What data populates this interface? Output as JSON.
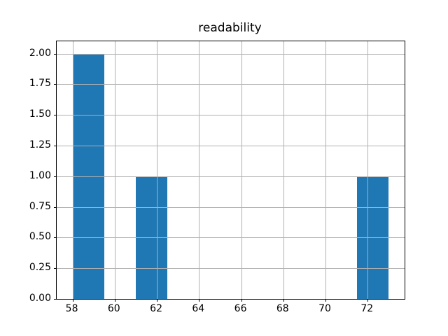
{
  "chart_data": {
    "type": "bar",
    "subtype": "histogram",
    "title": "readability",
    "xlabel": "",
    "ylabel": "",
    "bins": [
      [
        58.0,
        59.5
      ],
      [
        59.5,
        61.0
      ],
      [
        61.0,
        62.5
      ],
      [
        62.5,
        64.0
      ],
      [
        64.0,
        65.5
      ],
      [
        65.5,
        67.0
      ],
      [
        67.0,
        68.5
      ],
      [
        68.5,
        70.0
      ],
      [
        70.0,
        71.5
      ],
      [
        71.5,
        73.0
      ]
    ],
    "counts": [
      2,
      0,
      1,
      0,
      0,
      0,
      0,
      0,
      0,
      1
    ],
    "xlim": [
      57.25,
      73.75
    ],
    "ylim": [
      0,
      2.1
    ],
    "xticks": [
      58,
      60,
      62,
      64,
      66,
      68,
      70,
      72
    ],
    "xtick_labels": [
      "58",
      "60",
      "62",
      "64",
      "66",
      "68",
      "70",
      "72"
    ],
    "yticks": [
      0.0,
      0.25,
      0.5,
      0.75,
      1.0,
      1.25,
      1.5,
      1.75,
      2.0
    ],
    "ytick_labels": [
      "0.00",
      "0.25",
      "0.50",
      "0.75",
      "1.00",
      "1.25",
      "1.50",
      "1.75",
      "2.00"
    ],
    "grid": true,
    "legend": null,
    "bar_color": "#1f77b4",
    "grid_color": "#b0b0b0",
    "spine_color": "#000000",
    "background_color": "#ffffff"
  }
}
